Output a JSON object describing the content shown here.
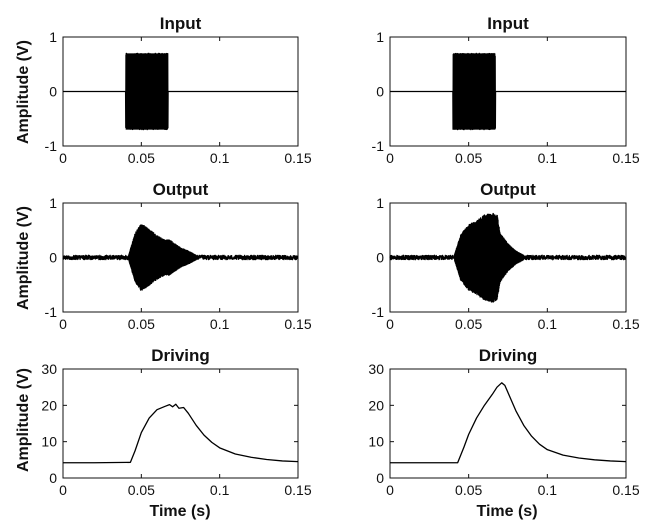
{
  "figure": {
    "ylabel": "Amplitude (V)",
    "xlabel": "Time (s)"
  },
  "chart_data": [
    {
      "type": "line",
      "panel": "input-left",
      "title": "Input",
      "xlim": [
        0,
        0.15
      ],
      "ylim": [
        -1,
        1
      ],
      "xticks": [
        0,
        0.05,
        0.1,
        0.15
      ],
      "yticks": [
        -1,
        0,
        1
      ],
      "baseline": 0,
      "burst": {
        "start": 0.04,
        "end": 0.067,
        "envelope": [
          [
            0.04,
            0.7
          ],
          [
            0.067,
            0.7
          ]
        ]
      }
    },
    {
      "type": "line",
      "panel": "input-right",
      "title": "Input",
      "xlim": [
        0,
        0.15
      ],
      "ylim": [
        -1,
        1
      ],
      "xticks": [
        0,
        0.05,
        0.1,
        0.15
      ],
      "yticks": [
        -1,
        0,
        1
      ],
      "baseline": 0,
      "burst": {
        "start": 0.04,
        "end": 0.067,
        "envelope": [
          [
            0.04,
            0.7
          ],
          [
            0.067,
            0.7
          ]
        ]
      }
    },
    {
      "type": "line",
      "panel": "output-left",
      "title": "Output",
      "xlim": [
        0,
        0.15
      ],
      "ylim": [
        -1,
        1
      ],
      "xticks": [
        0,
        0.05,
        0.1,
        0.15
      ],
      "yticks": [
        -1,
        0,
        1
      ],
      "baseline": 0,
      "noise": 0.04,
      "burst": {
        "start": 0.042,
        "end": 0.085,
        "envelope": [
          [
            0.042,
            0.05
          ],
          [
            0.046,
            0.45
          ],
          [
            0.05,
            0.62
          ],
          [
            0.055,
            0.52
          ],
          [
            0.06,
            0.4
          ],
          [
            0.065,
            0.32
          ],
          [
            0.068,
            0.33
          ],
          [
            0.07,
            0.28
          ],
          [
            0.075,
            0.18
          ],
          [
            0.08,
            0.12
          ],
          [
            0.085,
            0.04
          ]
        ]
      }
    },
    {
      "type": "line",
      "panel": "output-right",
      "title": "Output",
      "xlim": [
        0,
        0.15
      ],
      "ylim": [
        -1,
        1
      ],
      "xticks": [
        0,
        0.05,
        0.1,
        0.15
      ],
      "yticks": [
        -1,
        0,
        1
      ],
      "baseline": 0,
      "noise": 0.04,
      "burst": {
        "start": 0.041,
        "end": 0.085,
        "envelope": [
          [
            0.041,
            0.05
          ],
          [
            0.045,
            0.42
          ],
          [
            0.05,
            0.6
          ],
          [
            0.055,
            0.68
          ],
          [
            0.06,
            0.78
          ],
          [
            0.065,
            0.82
          ],
          [
            0.068,
            0.8
          ],
          [
            0.07,
            0.45
          ],
          [
            0.075,
            0.25
          ],
          [
            0.08,
            0.12
          ],
          [
            0.085,
            0.04
          ]
        ]
      }
    },
    {
      "type": "line",
      "panel": "driving-left",
      "title": "Driving",
      "xlim": [
        0,
        0.15
      ],
      "ylim": [
        0,
        30
      ],
      "xticks": [
        0,
        0.05,
        0.1,
        0.15
      ],
      "yticks": [
        0,
        10,
        20,
        30
      ],
      "x": [
        0,
        0.02,
        0.043,
        0.046,
        0.05,
        0.055,
        0.06,
        0.065,
        0.068,
        0.07,
        0.072,
        0.074,
        0.077,
        0.08,
        0.085,
        0.09,
        0.095,
        0.1,
        0.11,
        0.12,
        0.13,
        0.14,
        0.15
      ],
      "y": [
        4.2,
        4.2,
        4.3,
        7.5,
        12.5,
        16.5,
        18.8,
        19.7,
        20.2,
        19.6,
        20.3,
        19.2,
        19.4,
        17.8,
        14.5,
        11.8,
        9.8,
        8.3,
        6.6,
        5.7,
        5.1,
        4.7,
        4.5
      ]
    },
    {
      "type": "line",
      "panel": "driving-right",
      "title": "Driving",
      "xlim": [
        0,
        0.15
      ],
      "ylim": [
        0,
        30
      ],
      "xticks": [
        0,
        0.05,
        0.1,
        0.15
      ],
      "yticks": [
        0,
        10,
        20,
        30
      ],
      "x": [
        0,
        0.02,
        0.043,
        0.047,
        0.05,
        0.055,
        0.06,
        0.065,
        0.068,
        0.071,
        0.073,
        0.076,
        0.08,
        0.085,
        0.09,
        0.095,
        0.1,
        0.11,
        0.12,
        0.13,
        0.14,
        0.15
      ],
      "y": [
        4.2,
        4.2,
        4.2,
        8.5,
        12.0,
        16.5,
        20.0,
        23.0,
        25.0,
        26.2,
        25.5,
        22.5,
        18.5,
        14.5,
        11.5,
        9.3,
        7.8,
        6.3,
        5.5,
        5.0,
        4.7,
        4.5
      ]
    }
  ]
}
